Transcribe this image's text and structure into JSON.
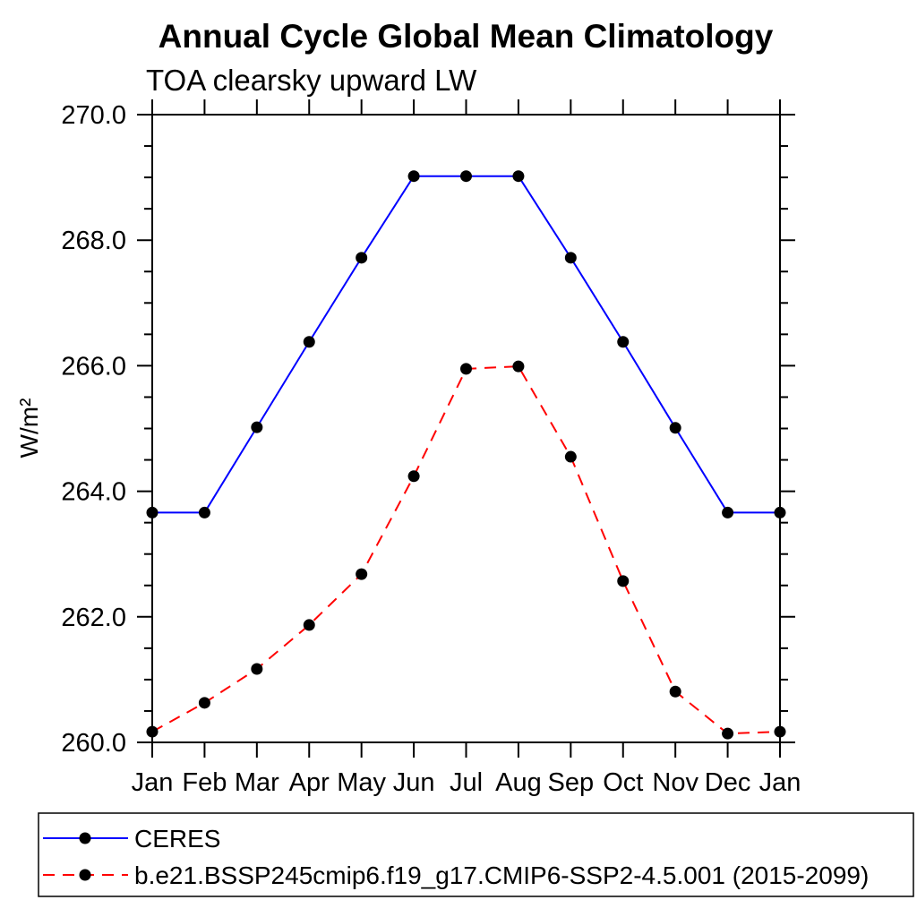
{
  "page": {
    "background": "#ffffff",
    "axis_color": "#000000",
    "text_color": "#000000"
  },
  "chart_data": {
    "type": "line",
    "title": "Annual Cycle Global Mean Climatology",
    "subtitle": "TOA clearsky upward LW",
    "ylabel": "W/m²",
    "x_categories": [
      "Jan",
      "Feb",
      "Mar",
      "Apr",
      "May",
      "Jun",
      "Jul",
      "Aug",
      "Sep",
      "Oct",
      "Nov",
      "Dec",
      "Jan"
    ],
    "ylim": [
      260.0,
      270.0
    ],
    "y_major_tick_step": 2.0,
    "y_minor_tick_step": 0.5,
    "y_tick_labels": [
      "260.0",
      "262.0",
      "264.0",
      "266.0",
      "268.0",
      "270.0"
    ],
    "grid": false,
    "ticks_point_outward": true,
    "legend_position": "bottom-box",
    "series": [
      {
        "name": "CERES",
        "color": "#0000ff",
        "line_style": "solid",
        "marker": "filled-circle",
        "marker_color": "#000000",
        "values": [
          263.66,
          263.66,
          265.02,
          266.38,
          267.72,
          269.02,
          269.02,
          269.02,
          267.72,
          266.38,
          265.01,
          263.66,
          263.66
        ]
      },
      {
        "name": "b.e21.BSSP245cmip6.f19_g17.CMIP6-SSP2-4.5.001 (2015-2099)",
        "color": "#ff0000",
        "line_style": "dashed",
        "marker": "filled-circle",
        "marker_color": "#000000",
        "values": [
          260.17,
          260.63,
          261.17,
          261.87,
          262.68,
          264.24,
          265.95,
          265.99,
          264.55,
          262.57,
          260.81,
          260.14,
          260.17
        ]
      }
    ]
  }
}
